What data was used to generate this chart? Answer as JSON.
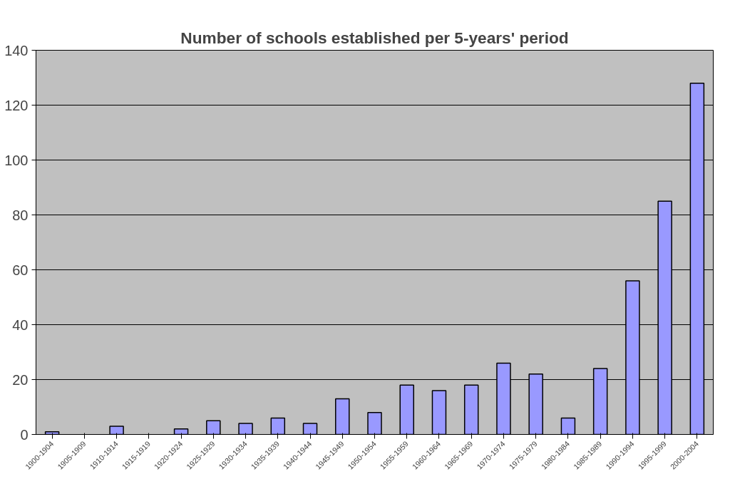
{
  "chart_data": {
    "type": "bar",
    "title": "Number of schools established per 5-years' period",
    "categories": [
      "1900-1904",
      "1905-1909",
      "1910-1914",
      "1915-1919",
      "1920-1924",
      "1925-1929",
      "1930-1934",
      "1935-1939",
      "1940-1944",
      "1945-1949",
      "1950-1954",
      "1955-1959",
      "1960-1964",
      "1965-1969",
      "1970-1974",
      "1975-1979",
      "1980-1984",
      "1985-1989",
      "1990-1994",
      "1995-1999",
      "2000-2004"
    ],
    "values": [
      1,
      0,
      3,
      0,
      2,
      5,
      4,
      6,
      4,
      13,
      8,
      18,
      16,
      18,
      26,
      22,
      6,
      24,
      56,
      85,
      128
    ],
    "color": "#9999ff",
    "ylim": [
      0,
      140
    ],
    "yticks": [
      0,
      20,
      40,
      60,
      80,
      100,
      120,
      140
    ],
    "grid": "y"
  }
}
